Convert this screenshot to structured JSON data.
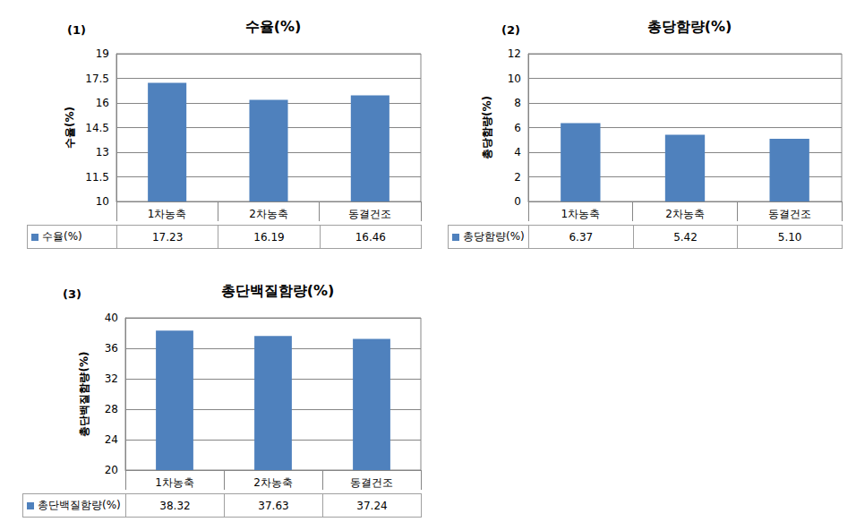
{
  "chart_data": [
    {
      "type": "bar",
      "annotation": "(1)",
      "title": "수율(%)",
      "y_label": "수율(%)",
      "categories": [
        "1차농축",
        "2차농축",
        "동결건조"
      ],
      "series": [
        {
          "name": "수율(%)",
          "color": "#4f81bd",
          "values": [
            17.23,
            16.19,
            16.46
          ],
          "value_labels": [
            "17.23",
            "16.19",
            "16.46"
          ]
        }
      ],
      "ylim": [
        10,
        19
      ],
      "yticks": [
        10,
        11.5,
        13,
        14.5,
        16,
        17.5,
        19
      ],
      "grid": true
    },
    {
      "type": "bar",
      "annotation": "(2)",
      "title": "총당함량(%)",
      "y_label": "총당함량(%)",
      "categories": [
        "1차농축",
        "2차농축",
        "동결건조"
      ],
      "series": [
        {
          "name": "총당함량(%)",
          "color": "#4f81bd",
          "values": [
            6.37,
            5.42,
            5.1
          ],
          "value_labels": [
            "6.37",
            "5.42",
            "5.10"
          ]
        }
      ],
      "ylim": [
        0,
        12
      ],
      "yticks": [
        0,
        2,
        4,
        6,
        8,
        10,
        12
      ],
      "grid": true
    },
    {
      "type": "bar",
      "annotation": "(3)",
      "title": "총단백질함량(%)",
      "y_label": "총단백질함량(%)",
      "categories": [
        "1차농축",
        "2차농축",
        "동결건조"
      ],
      "series": [
        {
          "name": "총단백질함량(%)",
          "color": "#4f81bd",
          "values": [
            38.32,
            37.63,
            37.24
          ],
          "value_labels": [
            "38.32",
            "37.63",
            "37.24"
          ]
        }
      ],
      "ylim": [
        20,
        40
      ],
      "yticks": [
        20,
        24,
        28,
        32,
        36,
        40
      ],
      "grid": true
    }
  ]
}
